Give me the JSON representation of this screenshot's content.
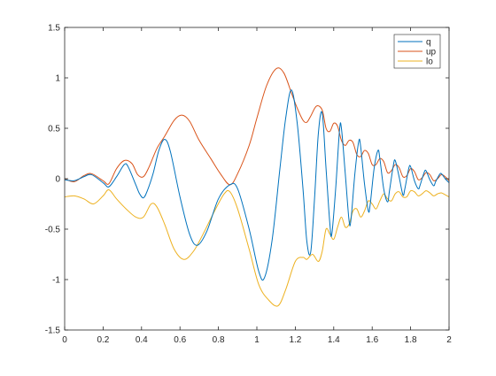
{
  "chart_data": {
    "type": "line",
    "title": "",
    "xlabel": "",
    "ylabel": "",
    "xlim": [
      0,
      2
    ],
    "ylim": [
      -1.5,
      1.5
    ],
    "xticks": [
      "0",
      "0.2",
      "0.4",
      "0.6",
      "0.8",
      "1",
      "1.2",
      "1.4",
      "1.6",
      "1.8",
      "2"
    ],
    "yticks": [
      "1.5",
      "1",
      "0.5",
      "0",
      "-0.5",
      "-1",
      "-1.5"
    ],
    "grid": false,
    "legend_position": "top-right",
    "series": [
      {
        "name": "q",
        "color": "#0072BD",
        "points": [
          [
            0,
            -0.01
          ],
          [
            0.05,
            -0.02
          ],
          [
            0.1,
            0.02
          ],
          [
            0.14,
            0.04
          ],
          [
            0.2,
            -0.04
          ],
          [
            0.23,
            -0.08
          ],
          [
            0.27,
            0.02
          ],
          [
            0.31,
            0.14
          ],
          [
            0.33,
            0.12
          ],
          [
            0.37,
            -0.06
          ],
          [
            0.39,
            -0.15
          ],
          [
            0.41,
            -0.19
          ],
          [
            0.43,
            -0.12
          ],
          [
            0.46,
            0.05
          ],
          [
            0.49,
            0.28
          ],
          [
            0.52,
            0.39
          ],
          [
            0.55,
            0.27
          ],
          [
            0.6,
            -0.18
          ],
          [
            0.65,
            -0.55
          ],
          [
            0.69,
            -0.66
          ],
          [
            0.74,
            -0.52
          ],
          [
            0.8,
            -0.2
          ],
          [
            0.86,
            -0.06
          ],
          [
            0.9,
            -0.1
          ],
          [
            0.96,
            -0.5
          ],
          [
            1.01,
            -0.92
          ],
          [
            1.04,
            -0.98
          ],
          [
            1.08,
            -0.6
          ],
          [
            1.12,
            0.1
          ],
          [
            1.15,
            0.6
          ],
          [
            1.18,
            0.88
          ],
          [
            1.21,
            0.55
          ],
          [
            1.24,
            -0.1
          ],
          [
            1.26,
            -0.62
          ],
          [
            1.28,
            -0.73
          ],
          [
            1.3,
            -0.2
          ],
          [
            1.32,
            0.45
          ],
          [
            1.34,
            0.65
          ],
          [
            1.36,
            0.1
          ],
          [
            1.38,
            -0.45
          ],
          [
            1.39,
            -0.55
          ],
          [
            1.41,
            -0.1
          ],
          [
            1.43,
            0.48
          ],
          [
            1.44,
            0.5
          ],
          [
            1.46,
            0.05
          ],
          [
            1.48,
            -0.42
          ],
          [
            1.49,
            -0.4
          ],
          [
            1.51,
            0.05
          ],
          [
            1.53,
            0.37
          ],
          [
            1.54,
            0.32
          ],
          [
            1.56,
            -0.05
          ],
          [
            1.58,
            -0.32
          ],
          [
            1.59,
            -0.25
          ],
          [
            1.61,
            0.1
          ],
          [
            1.63,
            0.28
          ],
          [
            1.64,
            0.2
          ],
          [
            1.66,
            -0.1
          ],
          [
            1.68,
            -0.23
          ],
          [
            1.69,
            -0.12
          ],
          [
            1.71,
            0.13
          ],
          [
            1.72,
            0.18
          ],
          [
            1.74,
            0.02
          ],
          [
            1.76,
            -0.16
          ],
          [
            1.77,
            -0.1
          ],
          [
            1.79,
            0.1
          ],
          [
            1.8,
            0.12
          ],
          [
            1.82,
            -0.02
          ],
          [
            1.84,
            -0.1
          ],
          [
            1.85,
            -0.06
          ],
          [
            1.87,
            0.06
          ],
          [
            1.88,
            0.08
          ],
          [
            1.9,
            -0.01
          ],
          [
            1.92,
            -0.07
          ],
          [
            1.93,
            -0.03
          ],
          [
            1.95,
            0.04
          ],
          [
            1.96,
            0.05
          ],
          [
            1.98,
            0.0
          ],
          [
            2.0,
            -0.04
          ]
        ]
      },
      {
        "name": "up",
        "color": "#D95319",
        "points": [
          [
            0,
            0.0
          ],
          [
            0.05,
            -0.03
          ],
          [
            0.1,
            0.03
          ],
          [
            0.14,
            0.05
          ],
          [
            0.2,
            -0.02
          ],
          [
            0.23,
            -0.05
          ],
          [
            0.27,
            0.1
          ],
          [
            0.31,
            0.18
          ],
          [
            0.35,
            0.15
          ],
          [
            0.38,
            0.04
          ],
          [
            0.41,
            0.02
          ],
          [
            0.44,
            0.12
          ],
          [
            0.48,
            0.3
          ],
          [
            0.52,
            0.42
          ],
          [
            0.57,
            0.58
          ],
          [
            0.61,
            0.63
          ],
          [
            0.65,
            0.57
          ],
          [
            0.7,
            0.38
          ],
          [
            0.76,
            0.2
          ],
          [
            0.81,
            0.05
          ],
          [
            0.86,
            -0.06
          ],
          [
            0.9,
            0.05
          ],
          [
            0.96,
            0.33
          ],
          [
            1.0,
            0.6
          ],
          [
            1.05,
            0.92
          ],
          [
            1.1,
            1.09
          ],
          [
            1.14,
            1.05
          ],
          [
            1.18,
            0.85
          ],
          [
            1.21,
            0.7
          ],
          [
            1.24,
            0.58
          ],
          [
            1.26,
            0.56
          ],
          [
            1.28,
            0.62
          ],
          [
            1.31,
            0.72
          ],
          [
            1.34,
            0.68
          ],
          [
            1.36,
            0.5
          ],
          [
            1.38,
            0.47
          ],
          [
            1.4,
            0.55
          ],
          [
            1.42,
            0.52
          ],
          [
            1.44,
            0.38
          ],
          [
            1.46,
            0.33
          ],
          [
            1.48,
            0.38
          ],
          [
            1.5,
            0.36
          ],
          [
            1.52,
            0.24
          ],
          [
            1.54,
            0.22
          ],
          [
            1.56,
            0.28
          ],
          [
            1.58,
            0.25
          ],
          [
            1.6,
            0.14
          ],
          [
            1.62,
            0.14
          ],
          [
            1.64,
            0.2
          ],
          [
            1.66,
            0.17
          ],
          [
            1.68,
            0.06
          ],
          [
            1.7,
            0.08
          ],
          [
            1.72,
            0.14
          ],
          [
            1.74,
            0.11
          ],
          [
            1.76,
            0.02
          ],
          [
            1.78,
            0.03
          ],
          [
            1.8,
            0.1
          ],
          [
            1.82,
            0.07
          ],
          [
            1.84,
            -0.01
          ],
          [
            1.86,
            0.01
          ],
          [
            1.88,
            0.06
          ],
          [
            1.9,
            0.04
          ],
          [
            1.92,
            -0.02
          ],
          [
            1.94,
            0.0
          ],
          [
            1.96,
            0.04
          ],
          [
            1.98,
            0.02
          ],
          [
            2.0,
            -0.02
          ]
        ]
      },
      {
        "name": "lo",
        "color": "#EDB120",
        "points": [
          [
            0,
            -0.18
          ],
          [
            0.05,
            -0.17
          ],
          [
            0.1,
            -0.2
          ],
          [
            0.15,
            -0.25
          ],
          [
            0.2,
            -0.17
          ],
          [
            0.23,
            -0.11
          ],
          [
            0.27,
            -0.2
          ],
          [
            0.32,
            -0.3
          ],
          [
            0.37,
            -0.38
          ],
          [
            0.41,
            -0.38
          ],
          [
            0.45,
            -0.25
          ],
          [
            0.48,
            -0.28
          ],
          [
            0.52,
            -0.45
          ],
          [
            0.57,
            -0.7
          ],
          [
            0.62,
            -0.8
          ],
          [
            0.67,
            -0.72
          ],
          [
            0.72,
            -0.55
          ],
          [
            0.78,
            -0.32
          ],
          [
            0.83,
            -0.15
          ],
          [
            0.86,
            -0.13
          ],
          [
            0.9,
            -0.3
          ],
          [
            0.96,
            -0.7
          ],
          [
            1.01,
            -1.05
          ],
          [
            1.06,
            -1.2
          ],
          [
            1.11,
            -1.26
          ],
          [
            1.15,
            -1.1
          ],
          [
            1.2,
            -0.82
          ],
          [
            1.24,
            -0.78
          ],
          [
            1.26,
            -0.8
          ],
          [
            1.29,
            -0.75
          ],
          [
            1.32,
            -0.82
          ],
          [
            1.34,
            -0.72
          ],
          [
            1.36,
            -0.5
          ],
          [
            1.38,
            -0.55
          ],
          [
            1.4,
            -0.6
          ],
          [
            1.42,
            -0.48
          ],
          [
            1.44,
            -0.38
          ],
          [
            1.46,
            -0.48
          ],
          [
            1.48,
            -0.45
          ],
          [
            1.5,
            -0.32
          ],
          [
            1.52,
            -0.3
          ],
          [
            1.54,
            -0.38
          ],
          [
            1.56,
            -0.32
          ],
          [
            1.58,
            -0.22
          ],
          [
            1.6,
            -0.25
          ],
          [
            1.62,
            -0.3
          ],
          [
            1.64,
            -0.22
          ],
          [
            1.66,
            -0.15
          ],
          [
            1.68,
            -0.2
          ],
          [
            1.7,
            -0.22
          ],
          [
            1.72,
            -0.15
          ],
          [
            1.74,
            -0.13
          ],
          [
            1.76,
            -0.18
          ],
          [
            1.78,
            -0.18
          ],
          [
            1.8,
            -0.12
          ],
          [
            1.82,
            -0.13
          ],
          [
            1.84,
            -0.17
          ],
          [
            1.86,
            -0.15
          ],
          [
            1.88,
            -0.12
          ],
          [
            1.9,
            -0.14
          ],
          [
            1.92,
            -0.17
          ],
          [
            1.94,
            -0.15
          ],
          [
            1.96,
            -0.14
          ],
          [
            1.98,
            -0.16
          ],
          [
            2.0,
            -0.18
          ]
        ]
      }
    ]
  }
}
